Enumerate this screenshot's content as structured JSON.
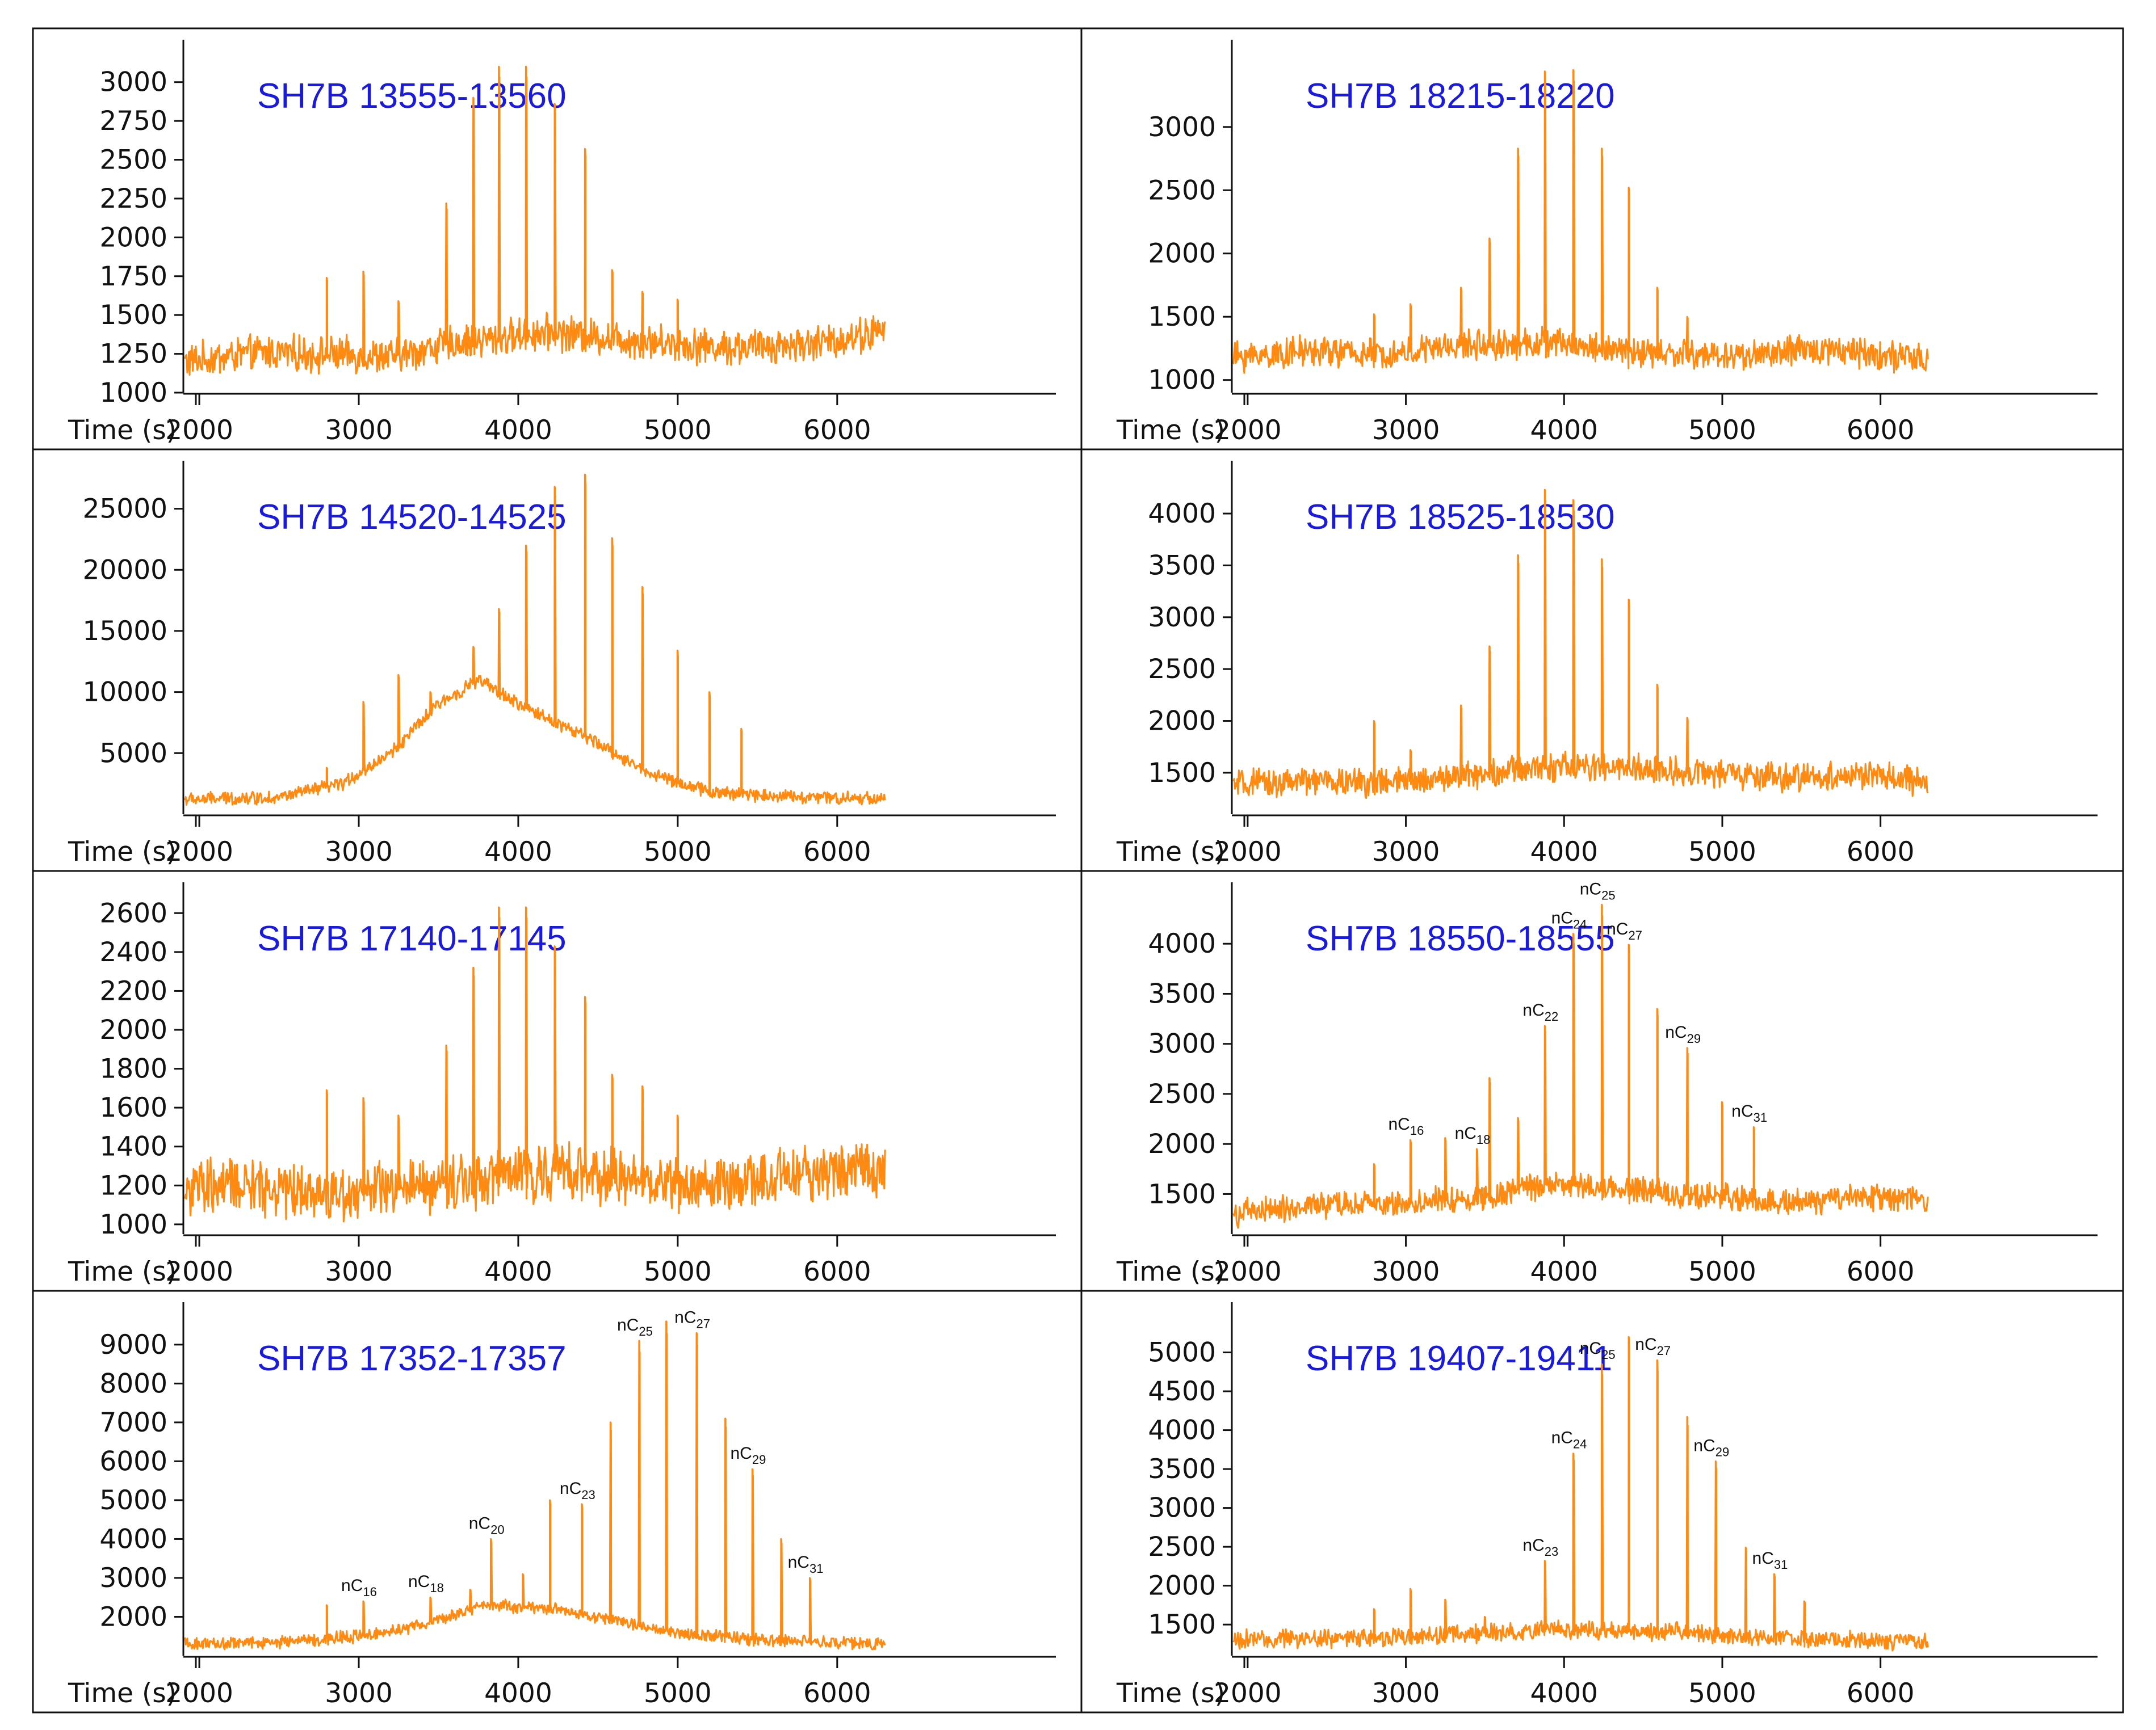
{
  "figure": {
    "xaxis_label": "Time (s)"
  },
  "colors": {
    "trace": "#ff8a12",
    "title": "#1a1adc",
    "axis": "#111111"
  },
  "chart_data": [
    {
      "type": "line",
      "title": "SH7B 13555-13560",
      "xlabel": "Time (s)",
      "ylabel": "",
      "xlim": [
        1900,
        7300
      ],
      "ylim": [
        1000,
        3200
      ],
      "xticks": [
        2000,
        3000,
        4000,
        5000,
        6000
      ],
      "yticks": [
        1000,
        1250,
        1500,
        1750,
        2000,
        2250,
        2500,
        2750,
        3000
      ],
      "baseline": {
        "x": [
          1910,
          2400,
          3200,
          3600,
          4200,
          4700,
          5300,
          5900,
          6300
        ],
        "y": [
          1200,
          1260,
          1230,
          1320,
          1390,
          1340,
          1290,
          1320,
          1400
        ]
      },
      "noise": 190,
      "peaks": [
        {
          "x": 2800,
          "y": 1740
        },
        {
          "x": 3030,
          "y": 1780
        },
        {
          "x": 3250,
          "y": 1590
        },
        {
          "x": 3550,
          "y": 2220
        },
        {
          "x": 3720,
          "y": 2900
        },
        {
          "x": 3880,
          "y": 3100
        },
        {
          "x": 4050,
          "y": 3100
        },
        {
          "x": 4230,
          "y": 2860
        },
        {
          "x": 4420,
          "y": 2570
        },
        {
          "x": 4590,
          "y": 1790
        },
        {
          "x": 4780,
          "y": 1650
        },
        {
          "x": 5000,
          "y": 1600
        }
      ],
      "annotations": []
    },
    {
      "type": "line",
      "title": "SH7B 18215-18220",
      "xlabel": "Time (s)",
      "ylabel": "",
      "xlim": [
        1900,
        7300
      ],
      "ylim": [
        900,
        3600
      ],
      "xticks": [
        2000,
        3000,
        4000,
        5000,
        6000
      ],
      "yticks": [
        1000,
        1500,
        2000,
        2500,
        3000
      ],
      "baseline": {
        "x": [
          1910,
          2400,
          2900,
          3300,
          3900,
          4500,
          5100,
          5700,
          6300
        ],
        "y": [
          1180,
          1230,
          1200,
          1270,
          1300,
          1210,
          1190,
          1250,
          1150
        ]
      },
      "noise": 200,
      "peaks": [
        {
          "x": 2800,
          "y": 1520
        },
        {
          "x": 3030,
          "y": 1600
        },
        {
          "x": 3350,
          "y": 1730
        },
        {
          "x": 3530,
          "y": 2120
        },
        {
          "x": 3710,
          "y": 2830
        },
        {
          "x": 3880,
          "y": 3440
        },
        {
          "x": 4060,
          "y": 3450
        },
        {
          "x": 4240,
          "y": 2830
        },
        {
          "x": 4410,
          "y": 2520
        },
        {
          "x": 4590,
          "y": 1730
        },
        {
          "x": 4780,
          "y": 1500
        }
      ],
      "annotations": []
    },
    {
      "type": "line",
      "title": "SH7B 14520-14525",
      "xlabel": "Time (s)",
      "ylabel": "",
      "xlim": [
        1900,
        7300
      ],
      "ylim": [
        0,
        28000
      ],
      "xticks": [
        2000,
        3000,
        4000,
        5000,
        6000
      ],
      "yticks": [
        5000,
        10000,
        15000,
        20000,
        25000
      ],
      "baseline": {
        "x": [
          1910,
          2500,
          2900,
          3200,
          3500,
          3750,
          4000,
          4400,
          4800,
          5200,
          5800,
          6300
        ],
        "y": [
          1200,
          1400,
          2500,
          5000,
          9000,
          11000,
          9000,
          6500,
          3500,
          1800,
          1400,
          1300
        ]
      },
      "noise": 900,
      "peaks": [
        {
          "x": 2800,
          "y": 3800
        },
        {
          "x": 3030,
          "y": 9200
        },
        {
          "x": 3250,
          "y": 11400
        },
        {
          "x": 3450,
          "y": 10000
        },
        {
          "x": 3720,
          "y": 13700
        },
        {
          "x": 3880,
          "y": 16800
        },
        {
          "x": 4050,
          "y": 22000
        },
        {
          "x": 4230,
          "y": 26800
        },
        {
          "x": 4420,
          "y": 27800
        },
        {
          "x": 4590,
          "y": 22600
        },
        {
          "x": 4780,
          "y": 18600
        },
        {
          "x": 5000,
          "y": 13400
        },
        {
          "x": 5200,
          "y": 10000
        },
        {
          "x": 5400,
          "y": 7000
        }
      ],
      "annotations": []
    },
    {
      "type": "line",
      "title": "SH7B 18525-18530",
      "xlabel": "Time (s)",
      "ylabel": "",
      "xlim": [
        1900,
        7300
      ],
      "ylim": [
        1100,
        4400
      ],
      "xticks": [
        2000,
        3000,
        4000,
        5000,
        6000
      ],
      "yticks": [
        1500,
        2000,
        2500,
        3000,
        3500,
        4000
      ],
      "baseline": {
        "x": [
          1910,
          2400,
          2900,
          3400,
          3900,
          4400,
          4900,
          5400,
          5900,
          6300
        ],
        "y": [
          1380,
          1420,
          1400,
          1480,
          1560,
          1540,
          1500,
          1450,
          1480,
          1400
        ]
      },
      "noise": 230,
      "peaks": [
        {
          "x": 2800,
          "y": 2000
        },
        {
          "x": 3030,
          "y": 1720
        },
        {
          "x": 3350,
          "y": 2150
        },
        {
          "x": 3530,
          "y": 2720
        },
        {
          "x": 3710,
          "y": 3600
        },
        {
          "x": 3880,
          "y": 4230
        },
        {
          "x": 4060,
          "y": 4130
        },
        {
          "x": 4240,
          "y": 3560
        },
        {
          "x": 4410,
          "y": 3170
        },
        {
          "x": 4590,
          "y": 2350
        },
        {
          "x": 4780,
          "y": 2030
        }
      ],
      "annotations": []
    },
    {
      "type": "line",
      "title": "SH7B 17140-17145",
      "xlabel": "Time (s)",
      "ylabel": "",
      "xlim": [
        1900,
        7300
      ],
      "ylim": [
        950,
        2700
      ],
      "xticks": [
        2000,
        3000,
        4000,
        5000,
        6000
      ],
      "yticks": [
        1000,
        1200,
        1400,
        1600,
        1800,
        2000,
        2200,
        2400,
        2600
      ],
      "baseline": {
        "x": [
          1910,
          2300,
          2800,
          3300,
          3800,
          4300,
          4800,
          5300,
          5800,
          6300
        ],
        "y": [
          1180,
          1200,
          1160,
          1180,
          1240,
          1280,
          1220,
          1200,
          1260,
          1300
        ]
      },
      "noise": 240,
      "peaks": [
        {
          "x": 2800,
          "y": 1690
        },
        {
          "x": 3030,
          "y": 1650
        },
        {
          "x": 3250,
          "y": 1560
        },
        {
          "x": 3550,
          "y": 1920
        },
        {
          "x": 3720,
          "y": 2320
        },
        {
          "x": 3880,
          "y": 2630
        },
        {
          "x": 4050,
          "y": 2630
        },
        {
          "x": 4230,
          "y": 2430
        },
        {
          "x": 4420,
          "y": 2170
        },
        {
          "x": 4590,
          "y": 1770
        },
        {
          "x": 4780,
          "y": 1710
        },
        {
          "x": 5000,
          "y": 1560
        }
      ],
      "annotations": []
    },
    {
      "type": "line",
      "title": "SH7B 18550-18555",
      "xlabel": "Time (s)",
      "ylabel": "",
      "xlim": [
        1900,
        7300
      ],
      "ylim": [
        1100,
        4500
      ],
      "xticks": [
        2000,
        3000,
        4000,
        5000,
        6000
      ],
      "yticks": [
        1500,
        2000,
        2500,
        3000,
        3500,
        4000
      ],
      "baseline": {
        "x": [
          1910,
          2400,
          2900,
          3400,
          3900,
          4400,
          4900,
          5400,
          5900,
          6300
        ],
        "y": [
          1300,
          1380,
          1400,
          1450,
          1600,
          1550,
          1480,
          1420,
          1460,
          1450
        ]
      },
      "noise": 220,
      "peaks": [
        {
          "x": 2800,
          "y": 1800
        },
        {
          "x": 3030,
          "y": 2040
        },
        {
          "x": 3250,
          "y": 2060
        },
        {
          "x": 3450,
          "y": 1950
        },
        {
          "x": 3530,
          "y": 2660
        },
        {
          "x": 3710,
          "y": 2260
        },
        {
          "x": 3880,
          "y": 3180
        },
        {
          "x": 4060,
          "y": 4100
        },
        {
          "x": 4240,
          "y": 4390
        },
        {
          "x": 4410,
          "y": 3990
        },
        {
          "x": 4590,
          "y": 3350
        },
        {
          "x": 4780,
          "y": 2960
        },
        {
          "x": 5000,
          "y": 2420
        },
        {
          "x": 5200,
          "y": 2170
        }
      ],
      "annotations": [
        {
          "name": "nC",
          "sub": "16",
          "x": 3030,
          "y": 2040
        },
        {
          "name": "nC",
          "sub": "18",
          "x": 3450,
          "y": 1950
        },
        {
          "name": "nC",
          "sub": "22",
          "x": 3880,
          "y": 3180
        },
        {
          "name": "nC",
          "sub": "24",
          "x": 4060,
          "y": 4100
        },
        {
          "name": "nC",
          "sub": "25",
          "x": 4240,
          "y": 4390
        },
        {
          "name": "nC",
          "sub": "27",
          "x": 4410,
          "y": 3990
        },
        {
          "name": "nC",
          "sub": "29",
          "x": 4780,
          "y": 2960
        },
        {
          "name": "nC",
          "sub": "31",
          "x": 5200,
          "y": 2170
        }
      ]
    },
    {
      "type": "line",
      "title": "SH7B 17352-17357",
      "xlabel": "Time (s)",
      "ylabel": "",
      "xlim": [
        1900,
        7300
      ],
      "ylim": [
        1000,
        9800
      ],
      "xticks": [
        2000,
        3000,
        4000,
        5000,
        6000
      ],
      "yticks": [
        2000,
        3000,
        4000,
        5000,
        6000,
        7000,
        8000,
        9000
      ],
      "baseline": {
        "x": [
          1910,
          2500,
          3000,
          3400,
          3800,
          4200,
          4600,
          5000,
          5500,
          6300
        ],
        "y": [
          1300,
          1350,
          1500,
          1800,
          2300,
          2200,
          1900,
          1600,
          1400,
          1300
        ]
      },
      "noise": 260,
      "peaks": [
        {
          "x": 2800,
          "y": 2300
        },
        {
          "x": 3030,
          "y": 2400
        },
        {
          "x": 3250,
          "y": 1800
        },
        {
          "x": 3450,
          "y": 2500
        },
        {
          "x": 3700,
          "y": 2700
        },
        {
          "x": 3830,
          "y": 4000
        },
        {
          "x": 4030,
          "y": 3100
        },
        {
          "x": 4200,
          "y": 5000
        },
        {
          "x": 4400,
          "y": 4900
        },
        {
          "x": 4580,
          "y": 7000
        },
        {
          "x": 4760,
          "y": 9100
        },
        {
          "x": 4930,
          "y": 9600
        },
        {
          "x": 5120,
          "y": 9300
        },
        {
          "x": 5300,
          "y": 7100
        },
        {
          "x": 5470,
          "y": 5800
        },
        {
          "x": 5650,
          "y": 4000
        },
        {
          "x": 5830,
          "y": 3000
        }
      ],
      "annotations": [
        {
          "name": "nC",
          "sub": "16",
          "x": 3030,
          "y": 2400
        },
        {
          "name": "nC",
          "sub": "18",
          "x": 3450,
          "y": 2500
        },
        {
          "name": "nC",
          "sub": "20",
          "x": 3830,
          "y": 4000
        },
        {
          "name": "nC",
          "sub": "23",
          "x": 4400,
          "y": 4900
        },
        {
          "name": "nC",
          "sub": "25",
          "x": 4760,
          "y": 9100
        },
        {
          "name": "nC",
          "sub": "27",
          "x": 5120,
          "y": 9300
        },
        {
          "name": "nC",
          "sub": "29",
          "x": 5470,
          "y": 5800
        },
        {
          "name": "nC",
          "sub": "31",
          "x": 5830,
          "y": 3000
        }
      ]
    },
    {
      "type": "line",
      "title": "SH7B 19407-19411",
      "xlabel": "Time (s)",
      "ylabel": "",
      "xlim": [
        1900,
        7300
      ],
      "ylim": [
        1100,
        5500
      ],
      "xticks": [
        2000,
        3000,
        4000,
        5000,
        6000
      ],
      "yticks": [
        1500,
        2000,
        2500,
        3000,
        3500,
        4000,
        4500,
        5000
      ],
      "baseline": {
        "x": [
          1910,
          2400,
          2900,
          3400,
          3900,
          4400,
          4900,
          5400,
          5900,
          6300
        ],
        "y": [
          1300,
          1320,
          1340,
          1380,
          1440,
          1420,
          1380,
          1320,
          1300,
          1280
        ]
      },
      "noise": 200,
      "peaks": [
        {
          "x": 2800,
          "y": 1700
        },
        {
          "x": 3030,
          "y": 1960
        },
        {
          "x": 3250,
          "y": 1820
        },
        {
          "x": 3500,
          "y": 1600
        },
        {
          "x": 3880,
          "y": 2320
        },
        {
          "x": 4060,
          "y": 3700
        },
        {
          "x": 4240,
          "y": 4850
        },
        {
          "x": 4410,
          "y": 5200
        },
        {
          "x": 4590,
          "y": 4900
        },
        {
          "x": 4780,
          "y": 4170
        },
        {
          "x": 4960,
          "y": 3600
        },
        {
          "x": 5150,
          "y": 2490
        },
        {
          "x": 5330,
          "y": 2150
        },
        {
          "x": 5520,
          "y": 1800
        }
      ],
      "annotations": [
        {
          "name": "nC",
          "sub": "23",
          "x": 3880,
          "y": 2320
        },
        {
          "name": "nC",
          "sub": "24",
          "x": 4060,
          "y": 3700
        },
        {
          "name": "nC",
          "sub": "25",
          "x": 4240,
          "y": 4850
        },
        {
          "name": "nC",
          "sub": "27",
          "x": 4590,
          "y": 4900
        },
        {
          "name": "nC",
          "sub": "29",
          "x": 4960,
          "y": 3600
        },
        {
          "name": "nC",
          "sub": "31",
          "x": 5330,
          "y": 2150
        }
      ]
    }
  ]
}
